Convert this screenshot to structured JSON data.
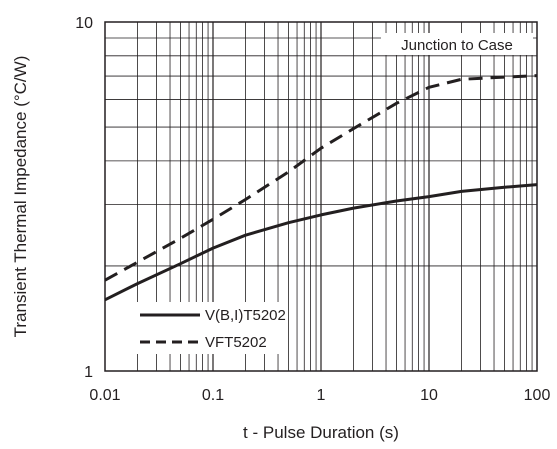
{
  "chart_data": {
    "type": "line",
    "title": "",
    "xlabel": "t - Pulse Duration (s)",
    "ylabel": "Transient Thermal Impedance (°C/W)",
    "x_scale": "log",
    "y_scale": "log",
    "xlim": [
      0.01,
      100
    ],
    "ylim": [
      1,
      10
    ],
    "x_ticks": [
      "0.01",
      "0.1",
      "1",
      "10",
      "100"
    ],
    "y_ticks": [
      "1",
      "10"
    ],
    "grid": true,
    "legend_position": "bottom-left",
    "annotation": "Junction to Case",
    "series": [
      {
        "name": "V(B,I)T5202",
        "style": "solid",
        "color": "#231f20",
        "x": [
          0.01,
          0.02,
          0.05,
          0.1,
          0.2,
          0.5,
          1,
          2,
          5,
          10,
          20,
          50,
          100
        ],
        "y": [
          1.6,
          1.78,
          2.03,
          2.25,
          2.45,
          2.66,
          2.8,
          2.93,
          3.07,
          3.16,
          3.27,
          3.36,
          3.42
        ]
      },
      {
        "name": "VFT5202",
        "style": "dashed",
        "color": "#231f20",
        "x": [
          0.01,
          0.02,
          0.05,
          0.1,
          0.2,
          0.5,
          1,
          2,
          5,
          10,
          20,
          50,
          100
        ],
        "y": [
          1.82,
          2.05,
          2.4,
          2.72,
          3.1,
          3.72,
          4.35,
          4.95,
          5.85,
          6.5,
          6.85,
          6.95,
          7.02
        ]
      }
    ]
  }
}
